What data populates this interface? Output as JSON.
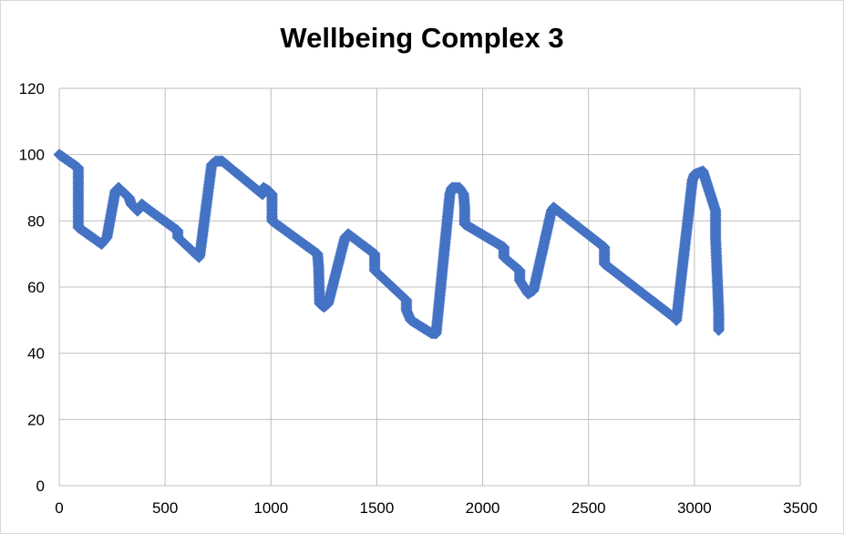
{
  "chart_data": {
    "type": "scatter",
    "title": "Wellbeing Complex 3",
    "xlabel": "",
    "ylabel": "",
    "xlim": [
      0,
      3500
    ],
    "ylim": [
      0,
      120
    ],
    "x_ticks": [
      "0",
      "500",
      "1000",
      "1500",
      "2000",
      "2500",
      "3000",
      "3500"
    ],
    "y_ticks": [
      "0",
      "20",
      "40",
      "60",
      "80",
      "100",
      "120"
    ],
    "grid": true,
    "legend": "none",
    "marker": "diamond",
    "color": "#4472C4",
    "series": [
      {
        "points": [
          [
            0,
            100
          ],
          [
            90,
            96
          ],
          [
            90,
            78
          ],
          [
            200,
            73
          ],
          [
            225,
            75
          ],
          [
            265,
            89
          ],
          [
            280,
            90
          ],
          [
            330,
            87
          ],
          [
            340,
            85
          ],
          [
            370,
            83
          ],
          [
            390,
            85
          ],
          [
            430,
            83
          ],
          [
            560,
            77
          ],
          [
            560,
            75
          ],
          [
            660,
            69
          ],
          [
            665,
            70
          ],
          [
            720,
            97
          ],
          [
            740,
            98
          ],
          [
            770,
            98
          ],
          [
            960,
            88
          ],
          [
            965,
            90
          ],
          [
            990,
            89
          ],
          [
            1005,
            88
          ],
          [
            1005,
            80
          ],
          [
            1220,
            70
          ],
          [
            1225,
            66
          ],
          [
            1230,
            55
          ],
          [
            1250,
            54
          ],
          [
            1270,
            55
          ],
          [
            1350,
            75
          ],
          [
            1365,
            76
          ],
          [
            1490,
            70
          ],
          [
            1490,
            65
          ],
          [
            1640,
            56
          ],
          [
            1640,
            53
          ],
          [
            1660,
            50
          ],
          [
            1760,
            46
          ],
          [
            1780,
            46
          ],
          [
            1845,
            88
          ],
          [
            1855,
            90
          ],
          [
            1890,
            90
          ],
          [
            1910,
            88
          ],
          [
            1915,
            84
          ],
          [
            1915,
            79
          ],
          [
            2100,
            72
          ],
          [
            2100,
            69
          ],
          [
            2175,
            65
          ],
          [
            2175,
            62
          ],
          [
            2215,
            58
          ],
          [
            2240,
            59
          ],
          [
            2325,
            83
          ],
          [
            2335,
            84
          ],
          [
            2575,
            72
          ],
          [
            2575,
            67
          ],
          [
            2900,
            51
          ],
          [
            2915,
            50
          ],
          [
            2990,
            92
          ],
          [
            3000,
            94
          ],
          [
            3040,
            95
          ],
          [
            3050,
            93
          ],
          [
            3070,
            89
          ],
          [
            3100,
            83
          ],
          [
            3100,
            75
          ],
          [
            3110,
            60
          ],
          [
            3115,
            52
          ],
          [
            3115,
            47
          ]
        ]
      }
    ]
  }
}
